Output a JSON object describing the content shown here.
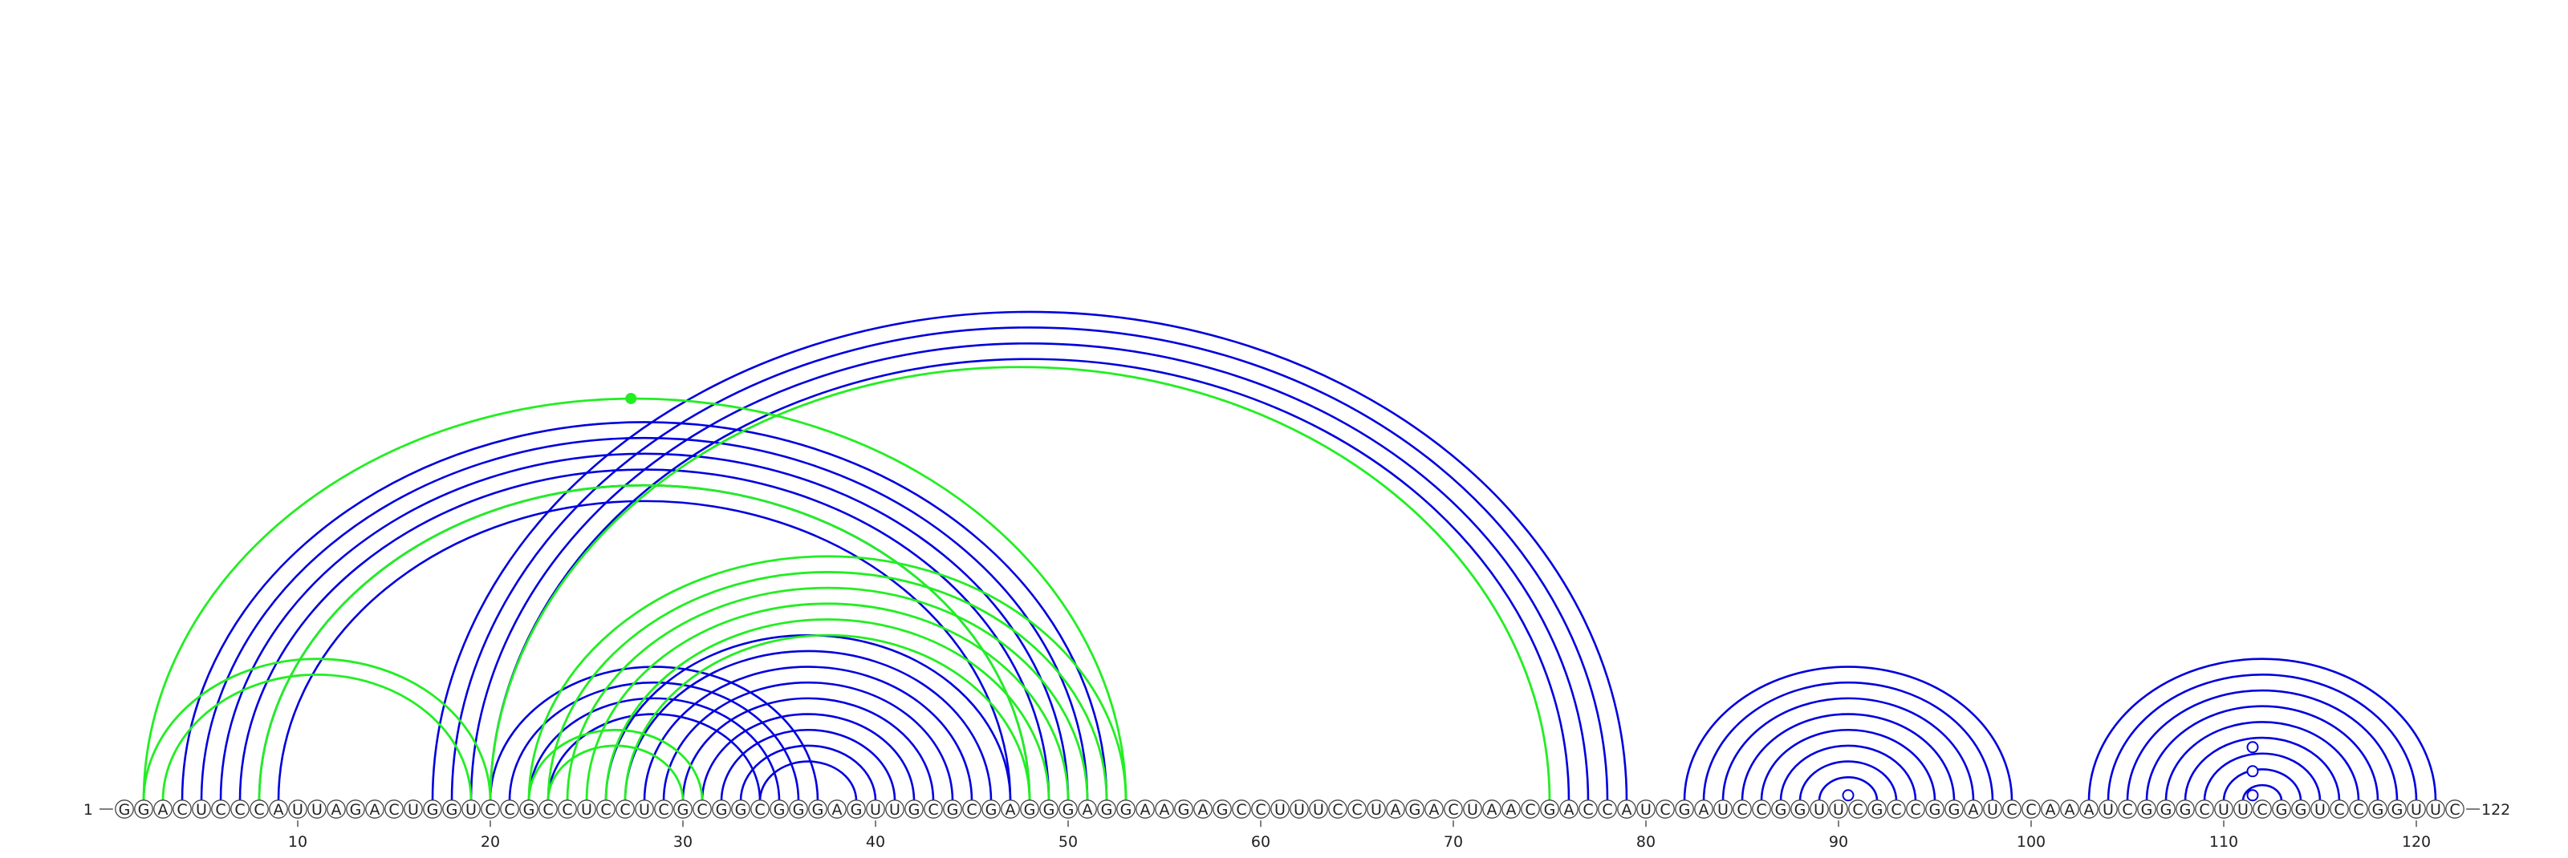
{
  "diagram": {
    "sequence": "GGACUCCCAUUAGACUGGUCCGCCUCCUCGCGGCGGGAGUUGCGCGAGGGAGGAAGAGCCUUUCCUAGACUAACGACCAUCGAUCCGGUUCGCCGGAUCCAAAUCGGGCUUCGGUCCGGUUC",
    "start_label": "1",
    "end_label": "122",
    "tick_labels": [
      "10",
      "20",
      "30",
      "40",
      "50",
      "60",
      "70",
      "80",
      "90",
      "100",
      "110",
      "120"
    ],
    "colors": {
      "blue": "#0000dd",
      "green": "#22ee22",
      "nucleotide_stroke": "#444444",
      "text": "#222222"
    },
    "blue_helices": [
      {
        "i": 4,
        "j": 52,
        "n": 6
      },
      {
        "i": 17,
        "j": 79,
        "n": 4
      },
      {
        "i": 20,
        "j": 37,
        "n": 4
      },
      {
        "i": 26,
        "j": 47,
        "n": 9
      },
      {
        "i": 82,
        "j": 99,
        "n": 8
      },
      {
        "i": 103,
        "j": 121,
        "n": 9
      }
    ],
    "green_helices": [
      {
        "i": 2,
        "j": 53,
        "n": 1
      },
      {
        "i": 2,
        "j": 20,
        "n": 2
      },
      {
        "i": 8,
        "j": 48,
        "n": 1
      },
      {
        "i": 20,
        "j": 75,
        "n": 1
      },
      {
        "i": 22,
        "j": 53,
        "n": 6
      },
      {
        "i": 22,
        "j": 31,
        "n": 2
      }
    ],
    "blue_markers": [
      {
        "i": 90,
        "j": 91
      },
      {
        "i": 111,
        "j": 112,
        "level": 1
      },
      {
        "i": 111,
        "j": 112,
        "level": 2
      },
      {
        "i": 111,
        "j": 112,
        "level": 3
      }
    ],
    "green_marker": {
      "i": 2,
      "j": 53
    }
  }
}
